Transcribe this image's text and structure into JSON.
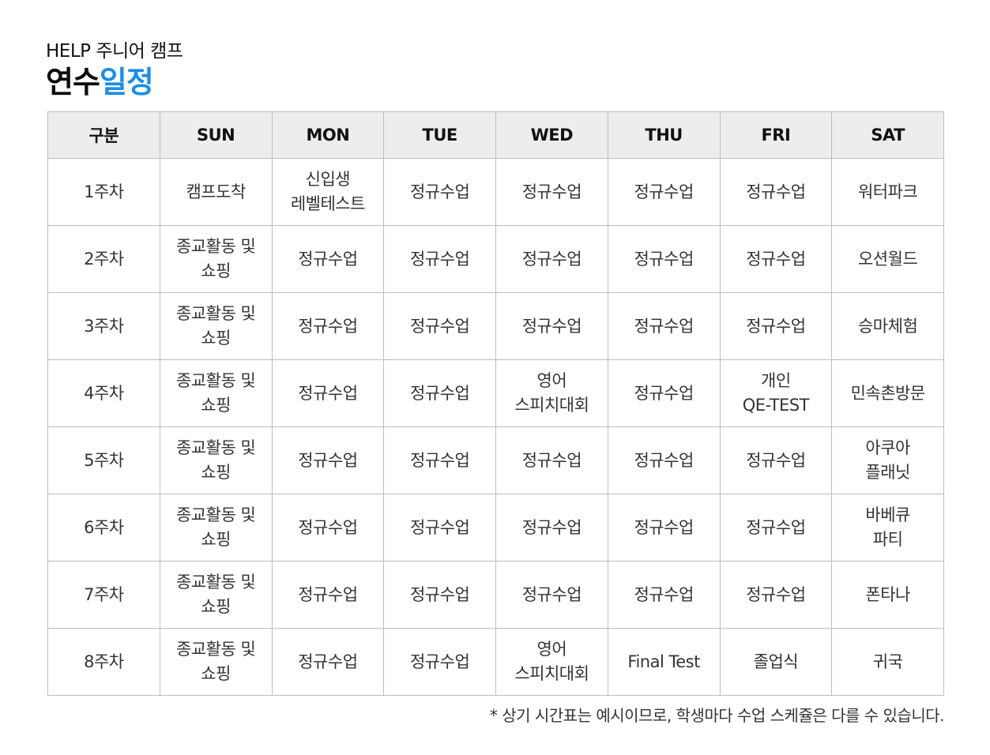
{
  "header": {
    "subtitle": "HELP 주니어 캠프",
    "title_part1": "연수",
    "title_part2": "일정"
  },
  "colors": {
    "accent": "#1a8ee6",
    "header_bg": "#ededed",
    "border": "#bdbdbd"
  },
  "table": {
    "columns": [
      "구분",
      "SUN",
      "MON",
      "TUE",
      "WED",
      "THU",
      "FRI",
      "SAT"
    ],
    "rows": [
      [
        "1주차",
        "캠프도착",
        "신입생\n레벨테스트",
        "정규수업",
        "정규수업",
        "정규수업",
        "정규수업",
        "워터파크"
      ],
      [
        "2주차",
        "종교활동 및\n쇼핑",
        "정규수업",
        "정규수업",
        "정규수업",
        "정규수업",
        "정규수업",
        "오션월드"
      ],
      [
        "3주차",
        "종교활동 및\n쇼핑",
        "정규수업",
        "정규수업",
        "정규수업",
        "정규수업",
        "정규수업",
        "승마체험"
      ],
      [
        "4주차",
        "종교활동 및\n쇼핑",
        "정규수업",
        "정규수업",
        "영어\n스피치대회",
        "정규수업",
        "개인\nQE-TEST",
        "민속촌방문"
      ],
      [
        "5주차",
        "종교활동 및\n쇼핑",
        "정규수업",
        "정규수업",
        "정규수업",
        "정규수업",
        "정규수업",
        "아쿠아\n플래닛"
      ],
      [
        "6주차",
        "종교활동 및\n쇼핑",
        "정규수업",
        "정규수업",
        "정규수업",
        "정규수업",
        "정규수업",
        "바베큐\n파티"
      ],
      [
        "7주차",
        "종교활동 및\n쇼핑",
        "정규수업",
        "정규수업",
        "정규수업",
        "정규수업",
        "정규수업",
        "폰타나"
      ],
      [
        "8주차",
        "종교활동 및\n쇼핑",
        "정규수업",
        "정규수업",
        "영어\n스피치대회",
        "Final Test",
        "졸업식",
        "귀국"
      ]
    ]
  },
  "note": "* 상기 시간표는 예시이므로, 학생마다 수업 스케쥴은 다를 수 있습니다."
}
